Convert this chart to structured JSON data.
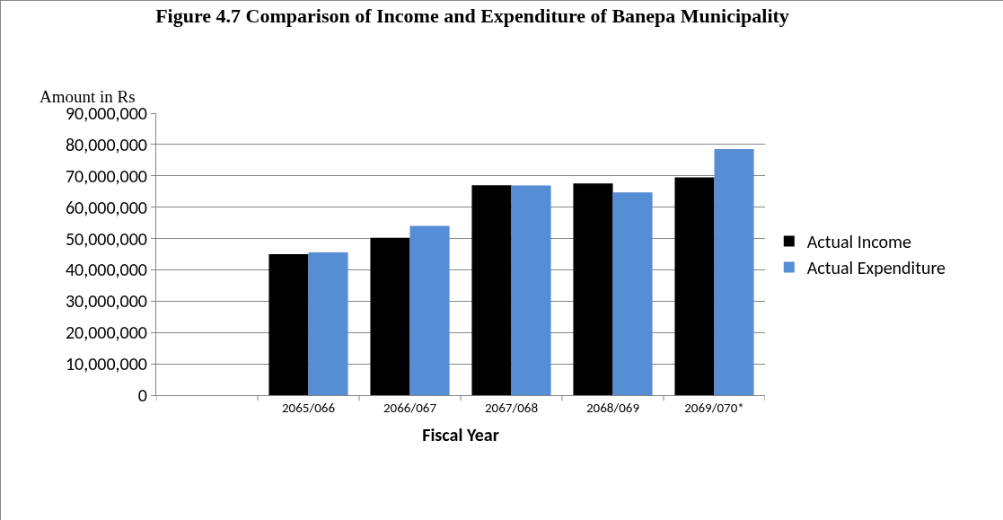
{
  "chart_data": {
    "type": "bar",
    "title": "Figure 4.7 Comparison of Income and Expenditure of Banepa Municipality",
    "xlabel": "Fiscal Year",
    "ylabel": "Amount in Rs",
    "categories": [
      null,
      "2065/066",
      "2066/067",
      "2067/068",
      "2068/069",
      "2069/070*"
    ],
    "series": [
      {
        "name": "Actual Income",
        "color": "#000000",
        "values": [
          null,
          45000000,
          50200000,
          67000000,
          67600000,
          69500000
        ]
      },
      {
        "name": "Actual Expenditure",
        "color": "#558ed5",
        "values": [
          null,
          45600000,
          54000000,
          66900000,
          64700000,
          78500000
        ]
      }
    ],
    "ylim": [
      0,
      90000000
    ],
    "yticks": [
      {
        "value": 0,
        "label": "0"
      },
      {
        "value": 10000000,
        "label": "10,000,000"
      },
      {
        "value": 20000000,
        "label": "20,000,000"
      },
      {
        "value": 30000000,
        "label": "30,000,000"
      },
      {
        "value": 40000000,
        "label": "40,000,000"
      },
      {
        "value": 50000000,
        "label": "50,000,000"
      },
      {
        "value": 60000000,
        "label": "60,000,000"
      },
      {
        "value": 70000000,
        "label": "70,000,000"
      },
      {
        "value": 80000000,
        "label": "80,000,000"
      },
      {
        "value": 90000000,
        "label": "90,000,000"
      }
    ],
    "grid": "y",
    "legend": "right"
  }
}
